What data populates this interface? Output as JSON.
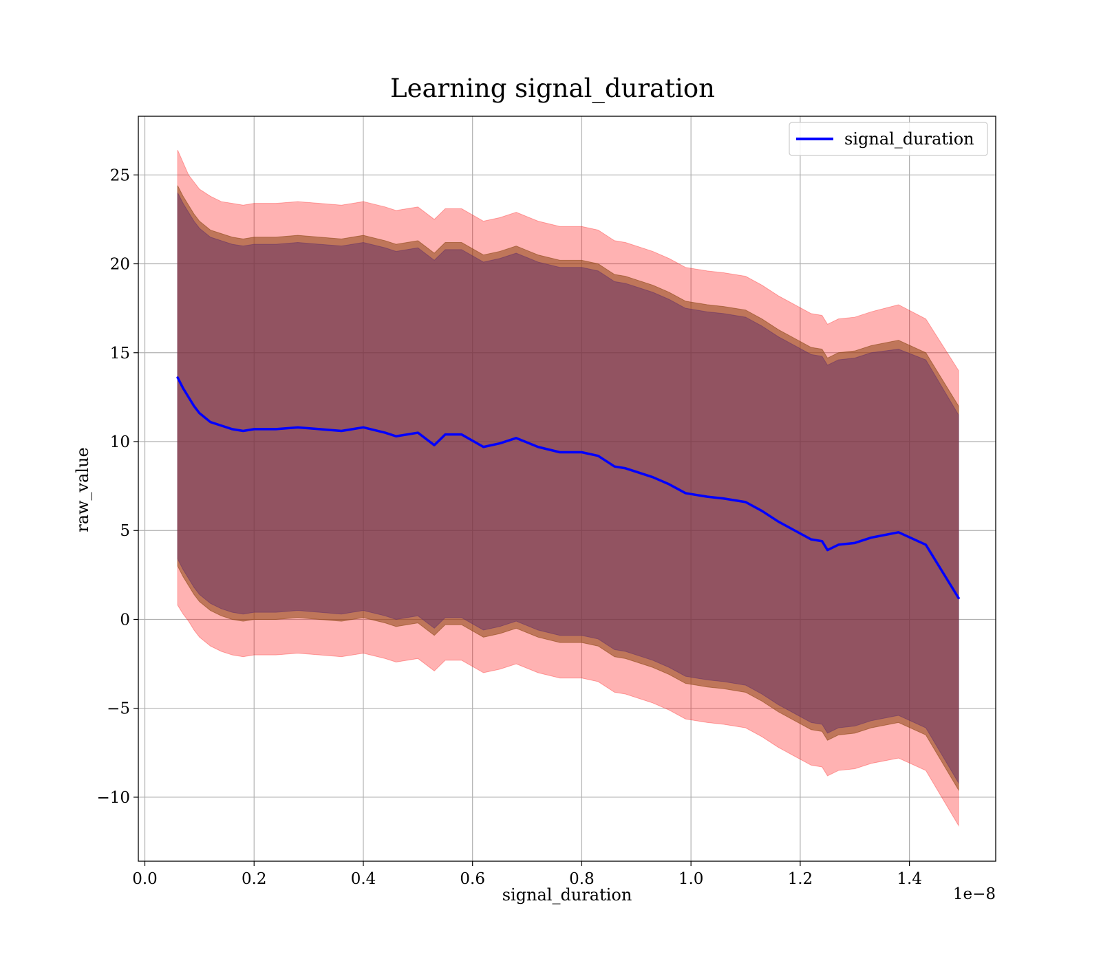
{
  "chart_data": {
    "type": "line",
    "title": "Learning signal_duration",
    "xlabel": "signal_duration",
    "ylabel": "raw_value",
    "x_offset_label": "1e−8",
    "xlim": [
      -0.012,
      1.558
    ],
    "ylim": [
      -13.6,
      28.3
    ],
    "grid": true,
    "legend_position": "top-right",
    "x_ticks": [
      0.0,
      0.2,
      0.4,
      0.6,
      0.8,
      1.0,
      1.2,
      1.4
    ],
    "x_tick_labels": [
      "0.0",
      "0.2",
      "0.4",
      "0.6",
      "0.8",
      "1.0",
      "1.2",
      "1.4"
    ],
    "y_ticks": [
      -10,
      -5,
      0,
      5,
      10,
      15,
      20,
      25
    ],
    "y_tick_labels": [
      "−10",
      "−5",
      "0",
      "5",
      "10",
      "15",
      "20",
      "25"
    ],
    "series": [
      {
        "name": "signal_duration",
        "color": "#0000ff",
        "x": [
          0.06,
          0.07,
          0.08,
          0.09,
          0.1,
          0.12,
          0.14,
          0.16,
          0.18,
          0.2,
          0.24,
          0.28,
          0.32,
          0.36,
          0.4,
          0.44,
          0.46,
          0.5,
          0.53,
          0.55,
          0.58,
          0.62,
          0.65,
          0.68,
          0.72,
          0.76,
          0.8,
          0.83,
          0.86,
          0.88,
          0.9,
          0.93,
          0.96,
          0.99,
          1.03,
          1.06,
          1.1,
          1.13,
          1.16,
          1.19,
          1.22,
          1.24,
          1.25,
          1.27,
          1.3,
          1.33,
          1.38,
          1.43,
          1.49
        ],
        "values": [
          13.6,
          13.0,
          12.5,
          12.0,
          11.6,
          11.1,
          10.9,
          10.7,
          10.6,
          10.7,
          10.7,
          10.8,
          10.7,
          10.6,
          10.8,
          10.5,
          10.3,
          10.5,
          9.8,
          10.4,
          10.4,
          9.7,
          9.9,
          10.2,
          9.7,
          9.4,
          9.4,
          9.2,
          8.6,
          8.5,
          8.3,
          8.0,
          7.6,
          7.1,
          6.9,
          6.8,
          6.6,
          6.1,
          5.5,
          5.0,
          4.5,
          4.4,
          3.9,
          4.2,
          4.3,
          4.6,
          4.9,
          4.2,
          1.2
        ]
      }
    ],
    "bands": [
      {
        "color": "#ff0000",
        "opacity": 0.3,
        "x": [
          0.06,
          0.07,
          0.08,
          0.09,
          0.1,
          0.12,
          0.14,
          0.16,
          0.18,
          0.2,
          0.24,
          0.28,
          0.32,
          0.36,
          0.4,
          0.44,
          0.46,
          0.5,
          0.53,
          0.55,
          0.58,
          0.62,
          0.65,
          0.68,
          0.72,
          0.76,
          0.8,
          0.83,
          0.86,
          0.88,
          0.9,
          0.93,
          0.96,
          0.99,
          1.03,
          1.06,
          1.1,
          1.13,
          1.16,
          1.19,
          1.22,
          1.24,
          1.25,
          1.27,
          1.3,
          1.33,
          1.38,
          1.43,
          1.49
        ],
        "upper": [
          26.4,
          25.7,
          25.0,
          24.6,
          24.2,
          23.8,
          23.5,
          23.4,
          23.3,
          23.4,
          23.4,
          23.5,
          23.4,
          23.3,
          23.5,
          23.2,
          23.0,
          23.2,
          22.5,
          23.1,
          23.1,
          22.4,
          22.6,
          22.9,
          22.4,
          22.1,
          22.1,
          21.9,
          21.3,
          21.2,
          21.0,
          20.7,
          20.3,
          19.8,
          19.6,
          19.5,
          19.3,
          18.8,
          18.2,
          17.7,
          17.2,
          17.1,
          16.6,
          16.9,
          17.0,
          17.3,
          17.7,
          16.9,
          14.0
        ],
        "lower": [
          0.8,
          0.3,
          -0.1,
          -0.6,
          -1.0,
          -1.5,
          -1.8,
          -2.0,
          -2.1,
          -2.0,
          -2.0,
          -1.9,
          -2.0,
          -2.1,
          -1.9,
          -2.2,
          -2.4,
          -2.2,
          -2.9,
          -2.3,
          -2.3,
          -3.0,
          -2.8,
          -2.5,
          -3.0,
          -3.3,
          -3.3,
          -3.5,
          -4.1,
          -4.2,
          -4.4,
          -4.7,
          -5.1,
          -5.6,
          -5.8,
          -5.9,
          -6.1,
          -6.6,
          -7.2,
          -7.7,
          -8.2,
          -8.3,
          -8.8,
          -8.5,
          -8.4,
          -8.1,
          -7.8,
          -8.5,
          -11.6
        ]
      },
      {
        "color": "#8b4513",
        "opacity": 0.55,
        "x": [
          0.06,
          0.07,
          0.08,
          0.09,
          0.1,
          0.12,
          0.14,
          0.16,
          0.18,
          0.2,
          0.24,
          0.28,
          0.32,
          0.36,
          0.4,
          0.44,
          0.46,
          0.5,
          0.53,
          0.55,
          0.58,
          0.62,
          0.65,
          0.68,
          0.72,
          0.76,
          0.8,
          0.83,
          0.86,
          0.88,
          0.9,
          0.93,
          0.96,
          0.99,
          1.03,
          1.06,
          1.1,
          1.13,
          1.16,
          1.19,
          1.22,
          1.24,
          1.25,
          1.27,
          1.3,
          1.33,
          1.38,
          1.43,
          1.49
        ],
        "upper": [
          24.4,
          23.8,
          23.3,
          22.8,
          22.4,
          21.9,
          21.7,
          21.5,
          21.4,
          21.5,
          21.5,
          21.6,
          21.5,
          21.4,
          21.6,
          21.3,
          21.1,
          21.3,
          20.6,
          21.2,
          21.2,
          20.5,
          20.7,
          21.0,
          20.5,
          20.2,
          20.2,
          20.0,
          19.4,
          19.3,
          19.1,
          18.8,
          18.4,
          17.9,
          17.7,
          17.6,
          17.4,
          16.9,
          16.3,
          15.8,
          15.3,
          15.2,
          14.7,
          15.0,
          15.1,
          15.4,
          15.7,
          15.0,
          12.0
        ],
        "lower": [
          3.0,
          2.4,
          1.9,
          1.4,
          1.0,
          0.5,
          0.2,
          0.0,
          -0.1,
          0.0,
          0.0,
          0.1,
          0.0,
          -0.1,
          0.1,
          -0.2,
          -0.4,
          -0.2,
          -0.9,
          -0.3,
          -0.3,
          -1.0,
          -0.8,
          -0.5,
          -1.0,
          -1.3,
          -1.3,
          -1.5,
          -2.1,
          -2.2,
          -2.4,
          -2.7,
          -3.1,
          -3.6,
          -3.8,
          -3.9,
          -4.1,
          -4.6,
          -5.2,
          -5.7,
          -6.2,
          -6.3,
          -6.8,
          -6.5,
          -6.4,
          -6.1,
          -5.8,
          -6.5,
          -9.6
        ]
      },
      {
        "color": "#5a2a6b",
        "opacity": 0.45,
        "x": [
          0.06,
          0.07,
          0.08,
          0.09,
          0.1,
          0.12,
          0.14,
          0.16,
          0.18,
          0.2,
          0.24,
          0.28,
          0.32,
          0.36,
          0.4,
          0.44,
          0.46,
          0.5,
          0.53,
          0.55,
          0.58,
          0.62,
          0.65,
          0.68,
          0.72,
          0.76,
          0.8,
          0.83,
          0.86,
          0.88,
          0.9,
          0.93,
          0.96,
          0.99,
          1.03,
          1.06,
          1.1,
          1.13,
          1.16,
          1.19,
          1.22,
          1.24,
          1.25,
          1.27,
          1.3,
          1.33,
          1.38,
          1.43,
          1.49
        ],
        "upper": [
          24.0,
          23.4,
          22.9,
          22.4,
          22.0,
          21.5,
          21.3,
          21.1,
          21.0,
          21.1,
          21.1,
          21.2,
          21.1,
          21.0,
          21.2,
          20.9,
          20.7,
          20.9,
          20.2,
          20.8,
          20.8,
          20.1,
          20.3,
          20.6,
          20.1,
          19.8,
          19.8,
          19.6,
          19.0,
          18.9,
          18.7,
          18.4,
          18.0,
          17.5,
          17.3,
          17.2,
          17.0,
          16.5,
          15.9,
          15.4,
          14.9,
          14.8,
          14.3,
          14.6,
          14.7,
          15.0,
          15.2,
          14.6,
          11.5
        ],
        "lower": [
          3.4,
          2.8,
          2.3,
          1.8,
          1.4,
          0.9,
          0.6,
          0.4,
          0.3,
          0.4,
          0.4,
          0.5,
          0.4,
          0.3,
          0.5,
          0.2,
          0.0,
          0.2,
          -0.5,
          0.1,
          0.1,
          -0.6,
          -0.4,
          -0.1,
          -0.6,
          -0.9,
          -0.9,
          -1.1,
          -1.7,
          -1.8,
          -2.0,
          -2.3,
          -2.7,
          -3.2,
          -3.4,
          -3.5,
          -3.7,
          -4.2,
          -4.8,
          -5.3,
          -5.8,
          -5.9,
          -6.4,
          -6.1,
          -6.0,
          -5.7,
          -5.4,
          -6.1,
          -9.2
        ]
      }
    ]
  }
}
